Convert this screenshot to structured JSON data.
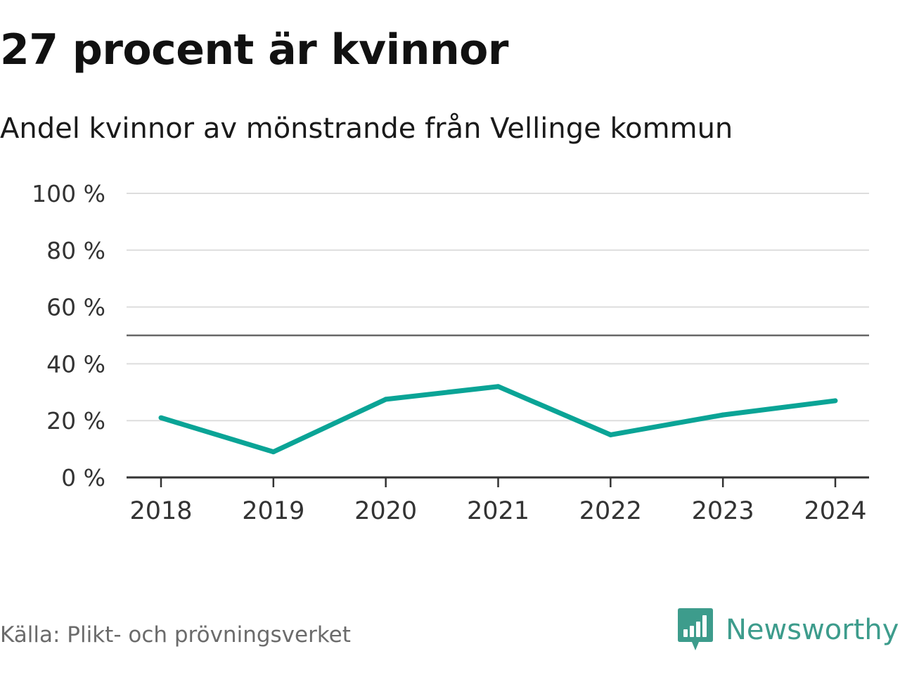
{
  "header": {
    "title": "27 procent är kvinnor",
    "subtitle": "Andel kvinnor av mönstrande från Vellinge kommun"
  },
  "footer": {
    "source": "Källa: Plikt- och prövningsverket",
    "brand": "Newsworthy",
    "brand_icon": "bar-chart-speech-bubble-icon"
  },
  "colors": {
    "line": "#0aa496",
    "grid": "#dddddd",
    "reference": "#666666",
    "axis": "#333333",
    "brand": "#3d9c8c"
  },
  "chart_data": {
    "type": "line",
    "title": "27 procent är kvinnor",
    "subtitle": "Andel kvinnor av mönstrande från Vellinge kommun",
    "xlabel": "",
    "ylabel": "",
    "x": [
      "2018",
      "2019",
      "2020",
      "2021",
      "2022",
      "2023",
      "2024"
    ],
    "series": [
      {
        "values": [
          21,
          9,
          27.5,
          32,
          15,
          22,
          27
        ]
      }
    ],
    "ylim": [
      0,
      100
    ],
    "yticks": [
      0,
      20,
      40,
      60,
      80,
      100
    ],
    "ytick_labels": [
      "0 %",
      "20 %",
      "40 %",
      "60 %",
      "80 %",
      "100 %"
    ],
    "reference_line": 50,
    "grid": true,
    "legend": "none"
  }
}
